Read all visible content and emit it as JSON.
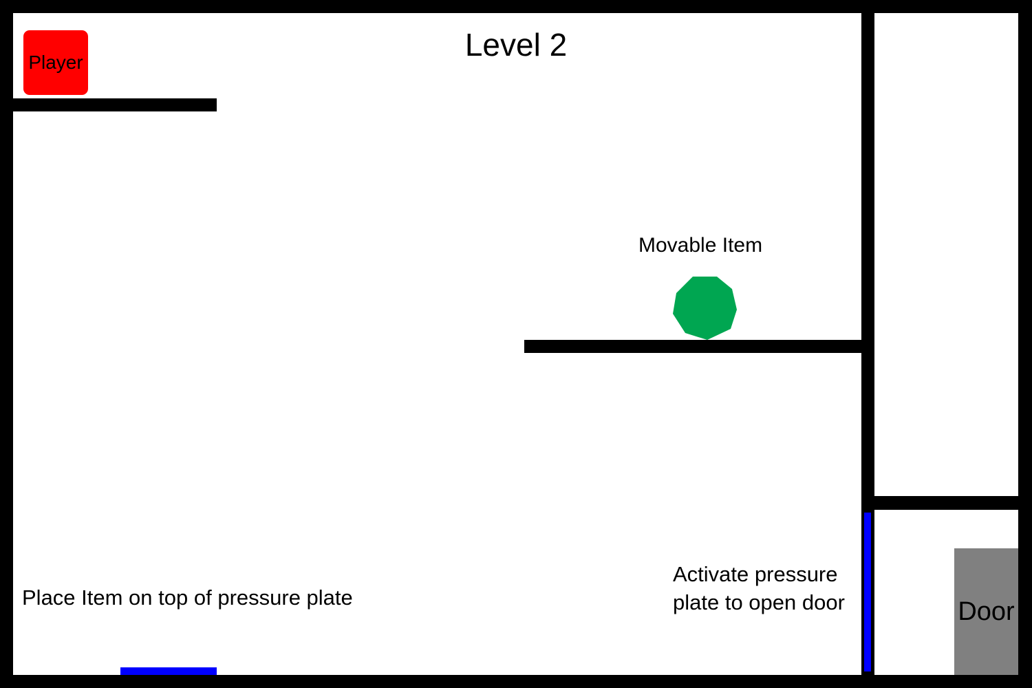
{
  "level": {
    "title": "Level 2"
  },
  "player": {
    "label": "Player",
    "color": "#ff0000"
  },
  "movable_item": {
    "label": "Movable Item",
    "color": "#00a651",
    "icon": "octagon-item"
  },
  "door": {
    "label": "Door",
    "color": "#808080"
  },
  "pressure_plate": {
    "color": "#0000ff"
  },
  "hints": {
    "place_item": "Place Item on top of pressure plate",
    "activate_line1": "Activate pressure",
    "activate_line2": "plate to open door"
  },
  "colors": {
    "wall": "#000000",
    "floor": "#ffffff"
  }
}
